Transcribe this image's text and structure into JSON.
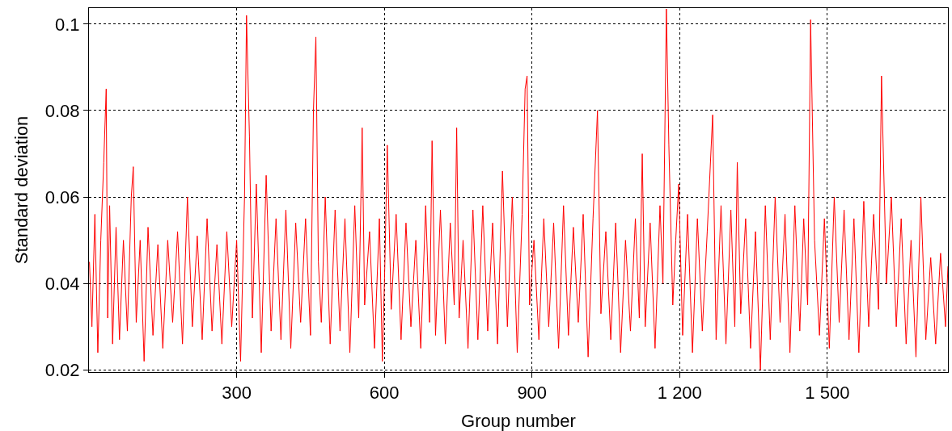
{
  "chart_data": {
    "type": "line",
    "xlabel": "Group number",
    "ylabel": "Standard deviation",
    "x": [
      1,
      6,
      12,
      18,
      24,
      30,
      35,
      38,
      42,
      48,
      55,
      62,
      70,
      78,
      86,
      90,
      96,
      104,
      112,
      120,
      130,
      140,
      150,
      160,
      170,
      180,
      190,
      200,
      210,
      220,
      230,
      240,
      250,
      260,
      270,
      280,
      290,
      300,
      308,
      316,
      320,
      326,
      332,
      340,
      350,
      360,
      370,
      380,
      390,
      400,
      410,
      420,
      430,
      440,
      450,
      456,
      461,
      466,
      472,
      480,
      490,
      500,
      510,
      520,
      530,
      540,
      548,
      555,
      560,
      570,
      580,
      590,
      596,
      601,
      606,
      614,
      624,
      634,
      644,
      654,
      664,
      674,
      684,
      692,
      697,
      704,
      714,
      724,
      734,
      742,
      747,
      752,
      760,
      770,
      780,
      790,
      800,
      810,
      820,
      830,
      840,
      850,
      860,
      870,
      880,
      886,
      890,
      895,
      904,
      914,
      924,
      934,
      944,
      954,
      964,
      974,
      984,
      994,
      1004,
      1014,
      1024,
      1033,
      1040,
      1050,
      1060,
      1070,
      1080,
      1090,
      1100,
      1110,
      1118,
      1124,
      1130,
      1140,
      1150,
      1160,
      1166,
      1173,
      1178,
      1186,
      1192,
      1198,
      1206,
      1216,
      1226,
      1236,
      1246,
      1256,
      1267,
      1274,
      1284,
      1294,
      1304,
      1312,
      1317,
      1324,
      1334,
      1344,
      1354,
      1364,
      1374,
      1384,
      1394,
      1404,
      1414,
      1424,
      1434,
      1444,
      1452,
      1460,
      1466,
      1474,
      1484,
      1494,
      1504,
      1514,
      1524,
      1534,
      1544,
      1554,
      1564,
      1574,
      1584,
      1594,
      1604,
      1610,
      1620,
      1630,
      1640,
      1650,
      1660,
      1670,
      1680,
      1690,
      1700,
      1710,
      1720,
      1730,
      1740,
      1745
    ],
    "series": [
      {
        "color": "#ff0000",
        "values": [
          0.045,
          0.03,
          0.056,
          0.024,
          0.05,
          0.068,
          0.085,
          0.032,
          0.058,
          0.026,
          0.053,
          0.027,
          0.05,
          0.029,
          0.06,
          0.067,
          0.031,
          0.05,
          0.022,
          0.053,
          0.028,
          0.049,
          0.025,
          0.05,
          0.031,
          0.052,
          0.026,
          0.06,
          0.03,
          0.051,
          0.027,
          0.055,
          0.029,
          0.049,
          0.026,
          0.052,
          0.03,
          0.05,
          0.022,
          0.06,
          0.102,
          0.074,
          0.032,
          0.063,
          0.024,
          0.065,
          0.029,
          0.055,
          0.027,
          0.057,
          0.025,
          0.054,
          0.031,
          0.055,
          0.028,
          0.08,
          0.097,
          0.045,
          0.031,
          0.06,
          0.026,
          0.057,
          0.029,
          0.055,
          0.024,
          0.058,
          0.032,
          0.076,
          0.035,
          0.052,
          0.025,
          0.055,
          0.022,
          0.044,
          0.072,
          0.034,
          0.056,
          0.027,
          0.054,
          0.03,
          0.05,
          0.025,
          0.058,
          0.031,
          0.073,
          0.028,
          0.057,
          0.026,
          0.054,
          0.035,
          0.076,
          0.032,
          0.05,
          0.025,
          0.057,
          0.027,
          0.058,
          0.029,
          0.054,
          0.026,
          0.066,
          0.03,
          0.06,
          0.024,
          0.056,
          0.085,
          0.088,
          0.035,
          0.05,
          0.027,
          0.055,
          0.03,
          0.054,
          0.025,
          0.058,
          0.028,
          0.053,
          0.031,
          0.056,
          0.023,
          0.055,
          0.08,
          0.033,
          0.052,
          0.027,
          0.054,
          0.024,
          0.05,
          0.029,
          0.055,
          0.032,
          0.07,
          0.03,
          0.054,
          0.025,
          0.058,
          0.04,
          0.1035,
          0.072,
          0.035,
          0.05,
          0.063,
          0.028,
          0.056,
          0.024,
          0.055,
          0.029,
          0.052,
          0.079,
          0.027,
          0.058,
          0.026,
          0.057,
          0.03,
          0.068,
          0.033,
          0.055,
          0.025,
          0.052,
          0.02,
          0.058,
          0.027,
          0.06,
          0.031,
          0.056,
          0.024,
          0.058,
          0.029,
          0.055,
          0.035,
          0.101,
          0.05,
          0.028,
          0.055,
          0.025,
          0.06,
          0.031,
          0.057,
          0.027,
          0.055,
          0.024,
          0.059,
          0.03,
          0.056,
          0.034,
          0.088,
          0.04,
          0.06,
          0.03,
          0.055,
          0.026,
          0.05,
          0.023,
          0.06,
          0.027,
          0.046,
          0.026,
          0.047,
          0.03,
          0.044
        ]
      }
    ],
    "xlim": [
      0,
      1745
    ],
    "ylim": [
      0.0195,
      0.1037
    ],
    "xticks": [
      300,
      600,
      900,
      {
        "value": 1200,
        "label": "1 200"
      },
      {
        "value": 1500,
        "label": "1 500"
      }
    ],
    "yticks": [
      0.02,
      0.04,
      0.06,
      0.08,
      0.1
    ],
    "grid": true
  }
}
